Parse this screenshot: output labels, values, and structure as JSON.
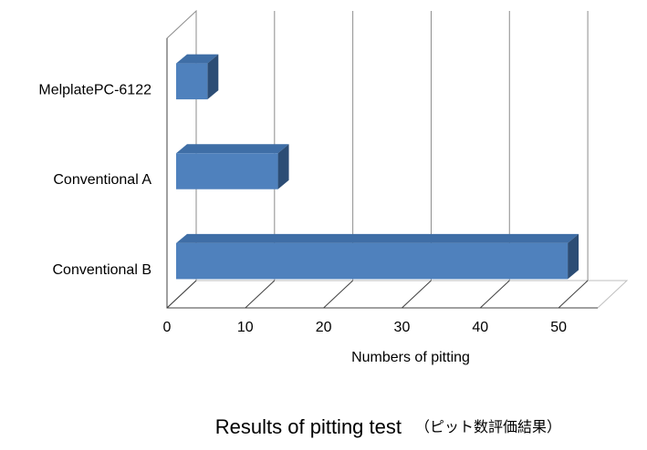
{
  "chart_data": {
    "type": "bar",
    "orientation": "horizontal",
    "title": "Results of pitting test",
    "subtitle": "（ピット数評価結果）",
    "x_label": "Numbers of pitting",
    "categories": [
      "MelplatePC-6122",
      "Conventional A",
      "Conventional B"
    ],
    "values": [
      4,
      13,
      50
    ],
    "color": "#4f81bd",
    "xlim": [
      0,
      55
    ],
    "xticks": [
      0,
      10,
      20,
      30,
      40,
      50
    ],
    "grid": true
  }
}
